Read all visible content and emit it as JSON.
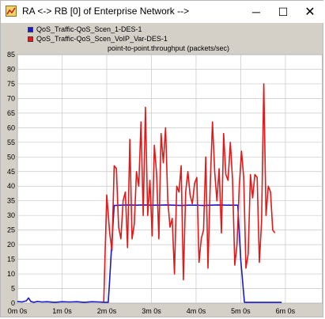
{
  "window": {
    "title": "RA <-> RB [0] of Enterprise Network -->",
    "icon": "opnet-window-icon",
    "controls": {
      "minimize": "─",
      "maximize": "☐",
      "close": "✕"
    }
  },
  "colors": {
    "series_1": "#1a1ac8",
    "series_2": "#e01a1a",
    "plot_bg": "#ffffff",
    "grid": "#c8c8c8"
  },
  "chart_data": {
    "type": "line",
    "title": "point-to-point.throughput (packets/sec)",
    "xlabel": "",
    "ylabel": "",
    "xlim": [
      0,
      410
    ],
    "ylim": [
      0,
      85
    ],
    "grid": true,
    "legend_placement": "top-left",
    "x_ticks": [
      {
        "value": 0,
        "label": "0m 0s"
      },
      {
        "value": 60,
        "label": "1m 0s"
      },
      {
        "value": 120,
        "label": "2m 0s"
      },
      {
        "value": 180,
        "label": "3m 0s"
      },
      {
        "value": 240,
        "label": "4m 0s"
      },
      {
        "value": 300,
        "label": "5m 0s"
      },
      {
        "value": 360,
        "label": "6m 0s"
      }
    ],
    "y_ticks": [
      0,
      5,
      10,
      15,
      20,
      25,
      30,
      35,
      40,
      45,
      50,
      55,
      60,
      65,
      70,
      75,
      80,
      85
    ],
    "series": [
      {
        "name": "QoS_Traffic-QoS_Scen_1-DES-1",
        "color": "#1a1ac8",
        "x": [
          0,
          6,
          12,
          15,
          18,
          22,
          27,
          33,
          40,
          50,
          60,
          70,
          80,
          90,
          100,
          110,
          118,
          122,
          124,
          126,
          130,
          140,
          150,
          160,
          170,
          180,
          190,
          200,
          210,
          220,
          230,
          240,
          250,
          260,
          270,
          280,
          290,
          293,
          296,
          300,
          305,
          320,
          340,
          355
        ],
        "y": [
          0.6,
          0.4,
          0.8,
          1.8,
          0.6,
          0.3,
          0.6,
          0.4,
          0.5,
          0.3,
          0.5,
          0.4,
          0.5,
          0.3,
          0.5,
          0.4,
          0.3,
          0.3,
          8,
          17,
          33.4,
          33.5,
          33.6,
          33.5,
          33.6,
          33.5,
          33.5,
          33.6,
          33.5,
          33.4,
          33.5,
          33.5,
          33.4,
          33.5,
          33.6,
          33.5,
          33.5,
          33.5,
          33.5,
          15,
          0.3,
          0.3,
          0.3,
          0.3
        ]
      },
      {
        "name": "QoS_Traffic-QoS_Scen_VoIP_Var-DES-1",
        "color": "#e01a1a",
        "x": [
          116,
          120,
          124,
          127,
          130,
          133,
          136,
          139,
          142,
          145,
          148,
          151,
          154,
          157,
          160,
          163,
          166,
          169,
          172,
          175,
          178,
          181,
          184,
          187,
          190,
          193,
          196,
          199,
          202,
          205,
          208,
          211,
          214,
          217,
          220,
          223,
          226,
          229,
          232,
          235,
          238,
          241,
          244,
          247,
          250,
          253,
          256,
          259,
          262,
          265,
          268,
          271,
          274,
          277,
          280,
          283,
          286,
          289,
          292,
          295,
          298,
          301,
          304,
          307,
          310,
          313,
          316,
          319,
          322,
          325,
          328,
          331,
          334,
          337,
          340,
          343,
          346
        ],
        "y": [
          0.5,
          37,
          24,
          18,
          47,
          46,
          26,
          22,
          35,
          38,
          19,
          56,
          22,
          27,
          45,
          40,
          62,
          30,
          67,
          30,
          42,
          23,
          54,
          44,
          22,
          58,
          48,
          60,
          35,
          26,
          29,
          10,
          40,
          38,
          47,
          8,
          38,
          45,
          37,
          34,
          41,
          43,
          14,
          22,
          25,
          50,
          12,
          40,
          62,
          45,
          35,
          46,
          24,
          58,
          44,
          42,
          55,
          42,
          13,
          20,
          40,
          52,
          43,
          12,
          17,
          44,
          36,
          44,
          43,
          14,
          28,
          75,
          30,
          40,
          38,
          25,
          24
        ]
      }
    ]
  }
}
